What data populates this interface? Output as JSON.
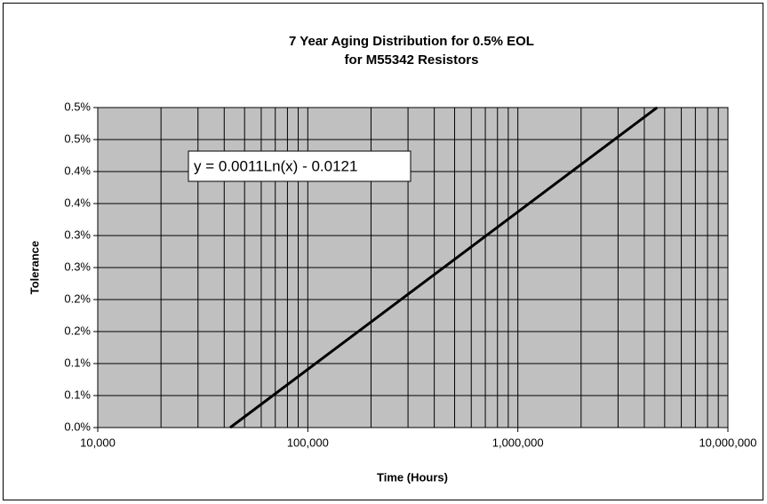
{
  "chart_data": {
    "type": "line",
    "title": [
      "7 Year Aging Distribution for 0.5% EOL",
      "for M55342 Resistors"
    ],
    "x_label": "Time (Hours)",
    "y_label": "Tolerance",
    "annotation": "y = 0.0011Ln(x) - 0.0121",
    "x_scale": "log",
    "minor_grid": true,
    "grid": true,
    "plot_background": "#c0c0c0",
    "xlim": [
      10000,
      10000000
    ],
    "xticks": [
      {
        "value": 10000,
        "label": "10,000"
      },
      {
        "value": 100000,
        "label": "100,000"
      },
      {
        "value": 1000000,
        "label": "1,000,000"
      },
      {
        "value": 10000000,
        "label": "10,000,000"
      }
    ],
    "ylim": [
      0,
      0.005
    ],
    "yticks": [
      {
        "value": 0,
        "label": "0.0%"
      },
      {
        "value": 0.0005,
        "label": "0.1%"
      },
      {
        "value": 0.001,
        "label": "0.1%"
      },
      {
        "value": 0.0015,
        "label": "0.2%"
      },
      {
        "value": 0.002,
        "label": "0.2%"
      },
      {
        "value": 0.0025,
        "label": "0.3%"
      },
      {
        "value": 0.003,
        "label": "0.3%"
      },
      {
        "value": 0.0035,
        "label": "0.4%"
      },
      {
        "value": 0.004,
        "label": "0.4%"
      },
      {
        "value": 0.0045,
        "label": "0.5%"
      },
      {
        "value": 0.005,
        "label": "0.5%"
      }
    ],
    "series": [
      {
        "color": "#000000",
        "x": [
          42700,
          4600000
        ],
        "values": [
          0,
          0.005
        ]
      }
    ]
  }
}
